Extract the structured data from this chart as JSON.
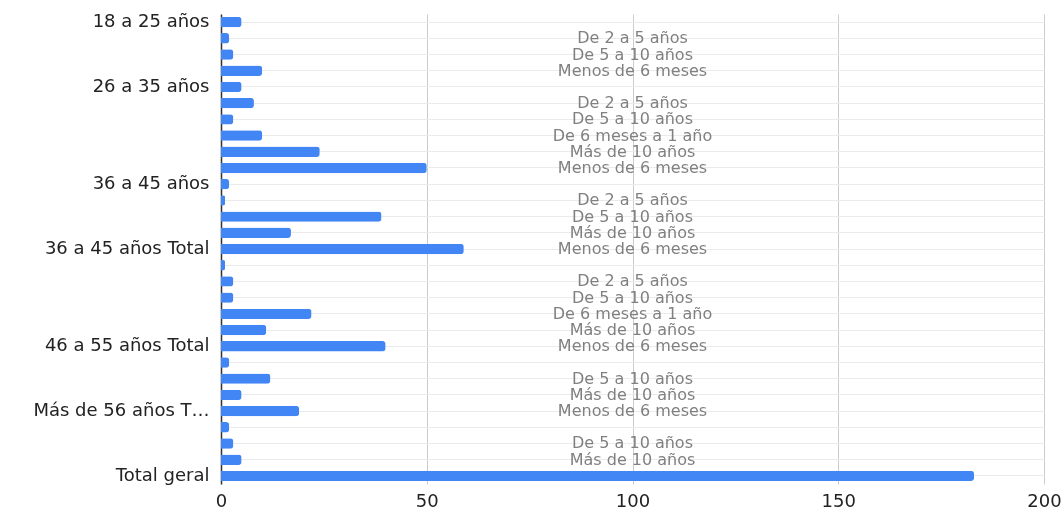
{
  "chart_data": {
    "type": "bar",
    "orientation": "horizontal",
    "categories": [
      "18 a 25 años",
      null,
      null,
      null,
      "26 a 35 años",
      null,
      null,
      null,
      null,
      null,
      "36 a 45 años",
      null,
      null,
      null,
      "36 a 45 años Total",
      null,
      null,
      null,
      null,
      null,
      "46 a 55 años Total",
      null,
      null,
      null,
      "Más de 56 años T…",
      null,
      null,
      null,
      "Total geral"
    ],
    "y2_categories": [
      null,
      "De 2 a 5 años",
      "De 5 a 10 años",
      "Menos de 6 meses",
      null,
      "De 2 a 5 años",
      "De 5 a 10 años",
      "De 6 meses a 1 año",
      "Más de 10 años",
      "Menos de 6 meses",
      null,
      "De 2 a 5 años",
      "De 5 a 10 años",
      "Más de 10 años",
      "Menos de 6 meses",
      null,
      "De 2 a 5 años",
      "De 5 a 10 años",
      "De 6 meses a 1 año",
      "Más de 10 años",
      "Menos de 6 meses",
      null,
      "De 5 a 10 años",
      "Más de 10 años",
      "Menos de 6 meses",
      null,
      "De 5 a 10 años",
      "Más de 10 años",
      null
    ],
    "values": [
      5,
      2,
      3,
      10,
      5,
      8,
      3,
      10,
      24,
      50,
      2,
      1,
      39,
      17,
      59,
      1,
      3,
      3,
      22,
      11,
      40,
      2,
      12,
      5,
      19,
      2,
      3,
      5,
      183
    ],
    "color": "#4285f4",
    "xlim": [
      0,
      200
    ],
    "xticks": [
      0,
      50,
      100,
      150,
      200
    ],
    "grid": true
  }
}
